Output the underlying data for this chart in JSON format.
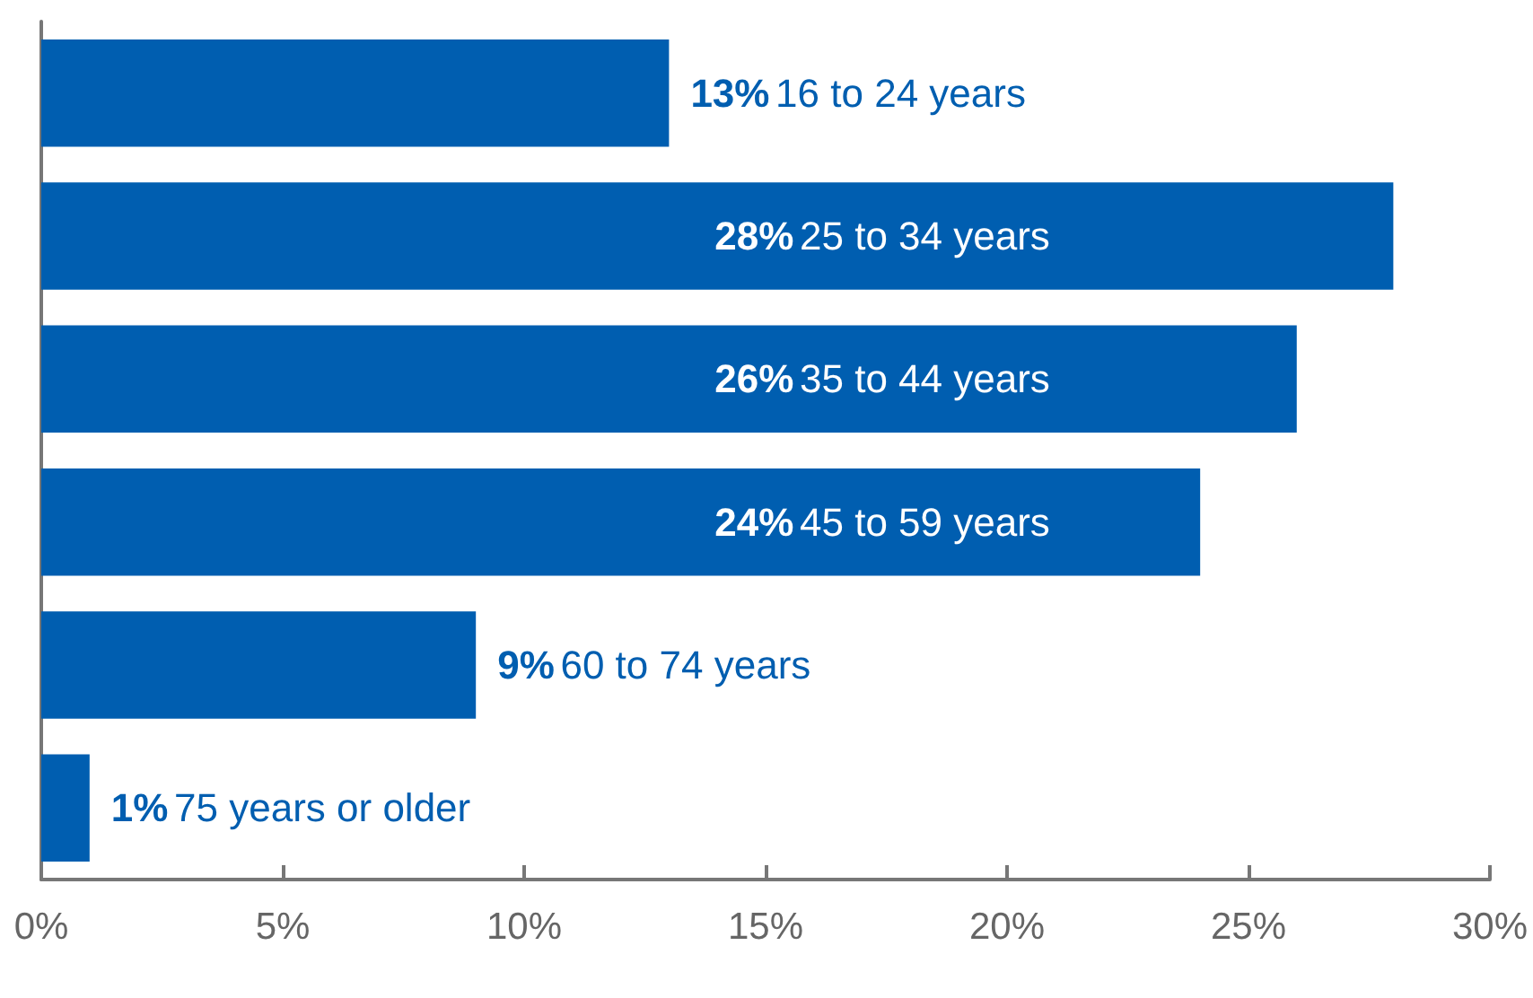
{
  "chart_data": {
    "type": "bar",
    "orientation": "horizontal",
    "categories": [
      "16 to 24 years",
      "25 to 34 years",
      "35 to 44 years",
      "45 to 59 years",
      "60 to 74 years",
      "75 years or older"
    ],
    "values": [
      13,
      28,
      26,
      24,
      9,
      1
    ],
    "value_labels": [
      "13%",
      "28%",
      "26%",
      "24%",
      "9%",
      "1%"
    ],
    "color": "#005eb0",
    "xlim": [
      0,
      30
    ],
    "xticks": [
      {
        "value": 0,
        "label": "0%"
      },
      {
        "value": 5,
        "label": "5%"
      },
      {
        "value": 10,
        "label": "10%"
      },
      {
        "value": 15,
        "label": "15%"
      },
      {
        "value": 20,
        "label": "20%"
      },
      {
        "value": 25,
        "label": "25%"
      },
      {
        "value": 30,
        "label": "30%"
      }
    ],
    "grid": false
  }
}
